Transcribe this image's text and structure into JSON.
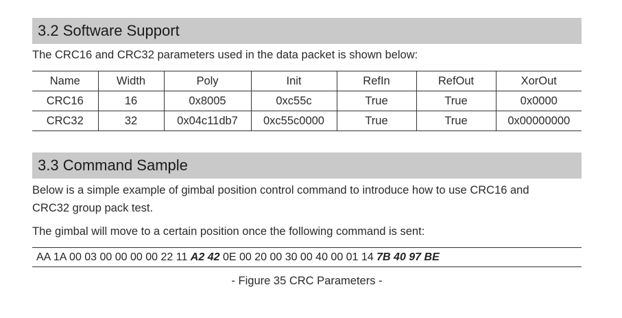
{
  "section_software": {
    "heading": "3.2 Software Support",
    "intro": "The CRC16 and CRC32 parameters used in the data packet is shown below:"
  },
  "crc_table": {
    "headers": [
      "Name",
      "Width",
      "Poly",
      "Init",
      "RefIn",
      "RefOut",
      "XorOut"
    ],
    "rows": [
      [
        "CRC16",
        "16",
        "0x8005",
        "0xc55c",
        "True",
        "True",
        "0x0000"
      ],
      [
        "CRC32",
        "32",
        "0x04c11db7",
        "0xc55c0000",
        "True",
        "True",
        "0x00000000"
      ]
    ]
  },
  "section_command": {
    "heading": "3.3 Command Sample",
    "para1_line1": "Below is a simple example of gimbal position control command to introduce how to use CRC16 and",
    "para1_line2": "CRC32 group pack test.",
    "para2": "The gimbal will move to a certain position once the following command is sent:"
  },
  "command": {
    "part1": "AA 1A 00 03 00 00 00 00 22 11 ",
    "crc16": "A2 42",
    "part2": " 0E 00 20 00 30 00 40 00 01 14 ",
    "crc32": "7B 40 97 BE"
  },
  "caption": "- Figure 35 CRC Parameters -"
}
